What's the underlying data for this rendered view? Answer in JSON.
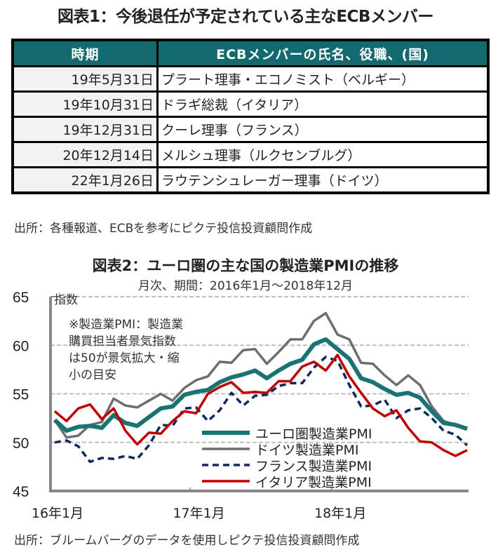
{
  "figure1": {
    "title": "図表1：今後退任が予定されている主なECBメンバー",
    "headers": [
      "時期",
      "ECBメンバーの氏名、役職、(国)"
    ],
    "rows": [
      {
        "date": "19年5月31日",
        "member": "プラート理事・エコノミスト（ベルギー）"
      },
      {
        "date": "19年10月31日",
        "member": "ドラギ総裁（イタリア）"
      },
      {
        "date": "19年12月31日",
        "member": "クーレ理事（フランス）"
      },
      {
        "date": "20年12月14日",
        "member": "メルシュ理事（ルクセンブルグ）"
      },
      {
        "date": "22年1月26日",
        "member": "ラウテンシュレーガー理事（ドイツ）"
      }
    ],
    "source": "出所：各種報道、ECBを参考にピクテ投信投資顧問作成",
    "header_color": "#136a6e"
  },
  "figure2": {
    "title": "図表2：ユーロ圏の主な国の製造業PMIの推移",
    "subtitle": "月次、期間：2016年1月～2018年12月",
    "note_lines": [
      "※製造業PMI：製造業",
      "購買担当者景気指数",
      "は50が景気拡大・縮",
      "小の目安"
    ],
    "source": "出所：ブルームバーグのデータを使用しピクテ投信投資顧問作成"
  },
  "chart_data": {
    "type": "line",
    "title": "図表2：ユーロ圏の主な国の製造業PMIの推移",
    "subtitle": "月次、期間：2016年1月～2018年12月",
    "ylabel": "指数",
    "xlabel": "",
    "ylim": [
      45,
      65
    ],
    "yticks": [
      45,
      50,
      55,
      60,
      65
    ],
    "xtick_labels": [
      {
        "label": "16年1月",
        "index": 0
      },
      {
        "label": "17年1月",
        "index": 12
      },
      {
        "label": "18年1月",
        "index": 24
      }
    ],
    "x_start": "2016-01",
    "x_count": 36,
    "grid": "horizontal-dashed",
    "legend_position": "bottom-center",
    "series": [
      {
        "name": "ユーロ圏製造業PMI",
        "color": "#1a7373",
        "style": "solid-thick",
        "values": [
          52.3,
          51.2,
          51.6,
          51.7,
          51.5,
          52.8,
          52.0,
          51.7,
          52.6,
          53.5,
          53.7,
          54.9,
          55.2,
          55.4,
          56.2,
          56.7,
          57.0,
          57.4,
          56.6,
          57.4,
          58.1,
          58.5,
          60.1,
          60.6,
          59.6,
          58.6,
          56.6,
          56.2,
          55.5,
          54.9,
          55.1,
          54.6,
          53.2,
          52.0,
          51.8,
          51.4
        ]
      },
      {
        "name": "ドイツ製造業PMI",
        "color": "#6e6e6e",
        "style": "solid",
        "values": [
          52.3,
          50.5,
          50.7,
          51.8,
          52.1,
          54.5,
          53.8,
          53.6,
          54.3,
          55.0,
          54.3,
          55.6,
          56.4,
          56.8,
          58.3,
          58.2,
          59.5,
          59.6,
          58.1,
          59.3,
          60.6,
          60.6,
          62.5,
          63.3,
          61.1,
          60.6,
          58.2,
          58.1,
          56.9,
          55.9,
          56.9,
          55.9,
          53.7,
          52.2,
          51.8,
          51.5
        ]
      },
      {
        "name": "フランス製造業PMI",
        "color": "#102a60",
        "style": "dashed",
        "values": [
          50.0,
          50.2,
          49.6,
          48.0,
          48.4,
          48.3,
          48.6,
          48.3,
          49.7,
          51.8,
          51.7,
          53.5,
          53.6,
          52.2,
          53.3,
          55.1,
          53.8,
          54.8,
          54.9,
          55.8,
          56.1,
          56.1,
          57.7,
          58.8,
          58.4,
          55.9,
          53.7,
          53.8,
          54.4,
          52.5,
          53.3,
          53.5,
          52.5,
          51.2,
          50.8,
          49.7
        ]
      },
      {
        "name": "イタリア製造業PMI",
        "color": "#c00000",
        "style": "solid",
        "values": [
          53.2,
          52.2,
          53.5,
          53.9,
          52.4,
          53.5,
          51.2,
          49.8,
          51.0,
          50.9,
          52.2,
          53.2,
          53.0,
          55.0,
          55.7,
          56.2,
          55.1,
          55.2,
          55.1,
          56.3,
          56.3,
          57.8,
          58.3,
          57.4,
          59.0,
          56.8,
          55.1,
          53.5,
          52.7,
          53.3,
          51.5,
          50.1,
          50.0,
          49.2,
          48.6,
          49.2
        ]
      }
    ]
  }
}
